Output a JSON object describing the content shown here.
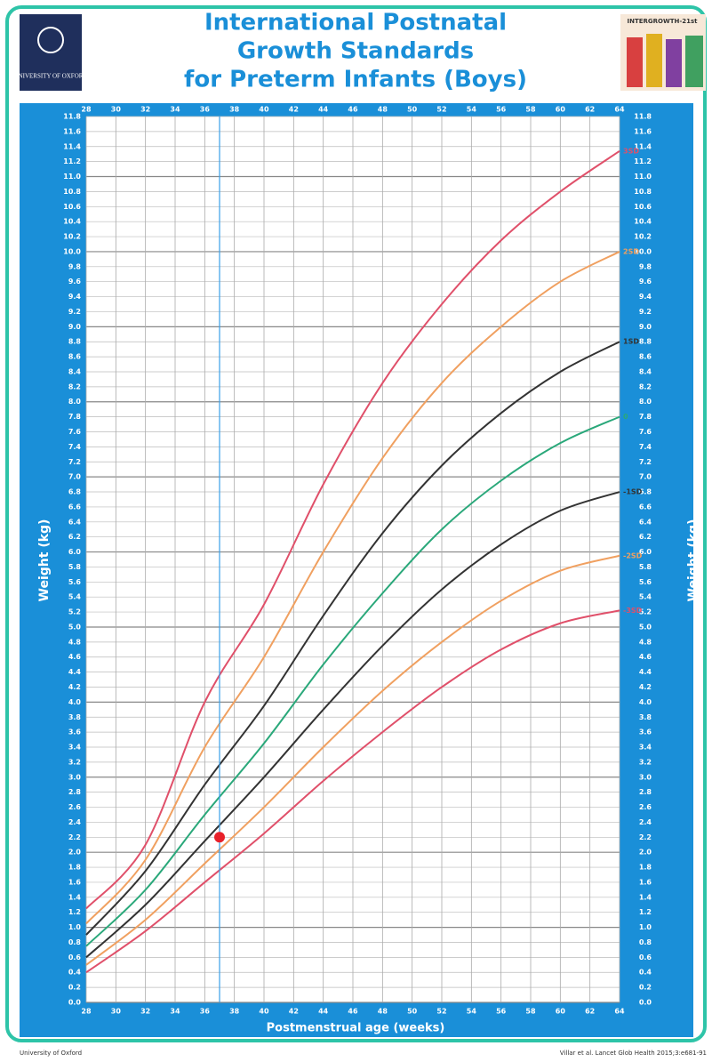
{
  "header": {
    "logo_left": "UNIVERSITY OF OXFORD",
    "logo_right": "INTERGROWTH-21st"
  },
  "footer": {
    "left": "University of Oxford",
    "right": "Villar et al. Lancet Glob Health 2015;3:e681-91"
  },
  "chart_data": {
    "type": "line",
    "title": [
      "International Postnatal",
      "Growth Standards",
      "for Preterm Infants (Boys)"
    ],
    "x_label": "Postmenstrual age (weeks)",
    "y_label": "Weight (kg)",
    "xlim": [
      28,
      64
    ],
    "xticks": [
      28,
      30,
      32,
      34,
      36,
      38,
      40,
      42,
      44,
      46,
      48,
      50,
      52,
      54,
      56,
      58,
      60,
      62,
      64
    ],
    "ylim": [
      0,
      11.8
    ],
    "yticks": [
      {
        "value": 0,
        "label": "0.0"
      },
      0.2,
      0.4,
      0.6,
      0.8,
      {
        "value": 1,
        "label": "1.0"
      },
      1.2,
      1.4,
      1.6,
      1.8,
      {
        "value": 2,
        "label": "2.0"
      },
      2.2,
      2.4,
      2.6,
      2.8,
      {
        "value": 3,
        "label": "3.0"
      },
      3.2,
      3.4,
      3.6,
      3.8,
      {
        "value": 4,
        "label": "4.0"
      },
      4.2,
      4.4,
      4.6,
      4.8,
      {
        "value": 5,
        "label": "5.0"
      },
      5.2,
      5.4,
      5.6,
      5.8,
      {
        "value": 6,
        "label": "6.0"
      },
      6.2,
      6.4,
      6.6,
      6.8,
      {
        "value": 7,
        "label": "7.0"
      },
      7.2,
      7.4,
      7.6,
      7.8,
      {
        "value": 8,
        "label": "8.0"
      },
      8.2,
      8.4,
      8.6,
      8.8,
      {
        "value": 9,
        "label": "9.0"
      },
      9.2,
      9.4,
      9.6,
      9.8,
      {
        "value": 10,
        "label": "10.0"
      },
      10.2,
      10.4,
      10.6,
      10.8,
      {
        "value": 11,
        "label": "11.0"
      },
      11.2,
      11.4,
      11.6,
      11.8
    ],
    "grid": true,
    "x": [
      28,
      32,
      36,
      40,
      44,
      48,
      52,
      56,
      60,
      64
    ],
    "series": [
      {
        "name": "3SD",
        "color": "#e0506a",
        "values": [
          1.25,
          2.1,
          4.0,
          5.3,
          6.9,
          8.25,
          9.3,
          10.15,
          10.8,
          11.34
        ]
      },
      {
        "name": "2SD",
        "color": "#f0a060",
        "values": [
          1.05,
          1.9,
          3.4,
          4.6,
          6.0,
          7.25,
          8.25,
          9.0,
          9.6,
          10.0
        ]
      },
      {
        "name": "1SD",
        "color": "#333333",
        "values": [
          0.9,
          1.75,
          2.9,
          3.95,
          5.15,
          6.25,
          7.15,
          7.85,
          8.4,
          8.8
        ]
      },
      {
        "name": "0",
        "color": "#2aa87a",
        "values": [
          0.75,
          1.5,
          2.5,
          3.45,
          4.5,
          5.45,
          6.3,
          6.95,
          7.45,
          7.8
        ]
      },
      {
        "name": "-1SD",
        "color": "#333333",
        "values": [
          0.6,
          1.3,
          2.15,
          3.0,
          3.9,
          4.75,
          5.5,
          6.1,
          6.55,
          6.8
        ]
      },
      {
        "name": "-2SD",
        "color": "#f0a060",
        "values": [
          0.5,
          1.1,
          1.85,
          2.6,
          3.4,
          4.15,
          4.8,
          5.35,
          5.75,
          5.95
        ]
      },
      {
        "name": "-3SD",
        "color": "#e0506a",
        "values": [
          0.4,
          0.95,
          1.6,
          2.25,
          2.95,
          3.6,
          4.2,
          4.7,
          5.05,
          5.22
        ]
      }
    ],
    "marker": {
      "x": 37,
      "y": 2.2,
      "color": "#e8202a",
      "line_color": "#3aa0e8"
    }
  }
}
